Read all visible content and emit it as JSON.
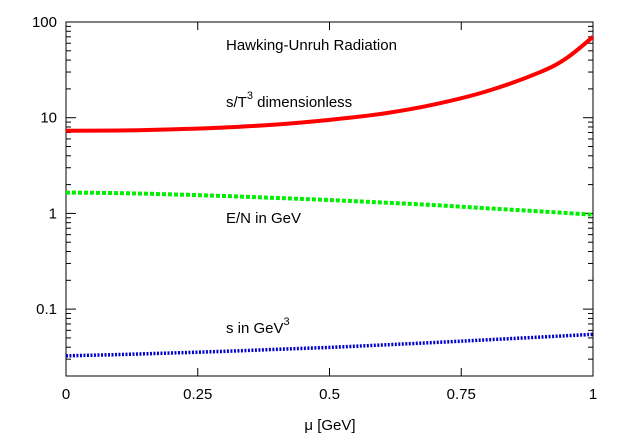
{
  "chart_data": {
    "type": "line",
    "title": "",
    "xlabel": "μ [GeV]",
    "ylabel": "",
    "xlim": [
      0,
      1
    ],
    "ylim": [
      0.02,
      100
    ],
    "yscale": "log",
    "grid": false,
    "x_ticks": [
      {
        "value": 0,
        "label": "0"
      },
      {
        "value": 0.25,
        "label": "0.25"
      },
      {
        "value": 0.5,
        "label": "0.5"
      },
      {
        "value": 0.75,
        "label": "0.75"
      },
      {
        "value": 1,
        "label": "1"
      }
    ],
    "y_ticks": [
      {
        "value": 0.1,
        "label": "0.1"
      },
      {
        "value": 1,
        "label": "1"
      },
      {
        "value": 10,
        "label": "10"
      },
      {
        "value": 100,
        "label": "100"
      }
    ],
    "series": [
      {
        "color": "#ff0000",
        "style": "solid",
        "x": [
          0,
          0.1,
          0.2,
          0.3,
          0.4,
          0.5,
          0.6,
          0.7,
          0.8,
          0.9,
          0.95,
          1.0
        ],
        "y": [
          7.3,
          7.35,
          7.55,
          7.9,
          8.5,
          9.5,
          11.0,
          13.8,
          19.0,
          30.0,
          42.0,
          70.0
        ]
      },
      {
        "color": "#00ee00",
        "style": "dashed",
        "x": [
          0,
          0.1,
          0.2,
          0.3,
          0.4,
          0.5,
          0.6,
          0.7,
          0.8,
          0.9,
          1.0
        ],
        "y": [
          1.65,
          1.63,
          1.58,
          1.52,
          1.45,
          1.38,
          1.3,
          1.22,
          1.13,
          1.05,
          0.97
        ]
      },
      {
        "color": "#0000cc",
        "style": "dotted",
        "x": [
          0,
          0.1,
          0.2,
          0.3,
          0.4,
          0.5,
          0.6,
          0.7,
          0.8,
          0.9,
          1.0
        ],
        "y": [
          0.0325,
          0.0335,
          0.0348,
          0.0362,
          0.038,
          0.0398,
          0.0422,
          0.0448,
          0.0478,
          0.051,
          0.0545
        ]
      }
    ],
    "annotations": [
      {
        "id": "title-annot",
        "text": "Hawking-Unruh Radiation",
        "sup": ""
      },
      {
        "id": "st3-label",
        "text": "s/T",
        "sup": "3",
        "suffix": " dimensionless"
      },
      {
        "id": "en-label",
        "text": "E/N in GeV",
        "sup": ""
      },
      {
        "id": "s-label",
        "text": "s in GeV",
        "sup": "3"
      }
    ]
  }
}
